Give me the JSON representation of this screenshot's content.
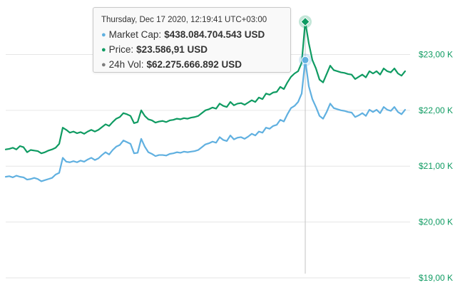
{
  "colors": {
    "price": "#0f9b62",
    "market_cap": "#60b0e0",
    "volume": "#7d7d7d",
    "grid": "#e6e6e6",
    "crosshair": "#c3c3c3"
  },
  "tooltip": {
    "header": "Thursday, Dec 17 2020, 12:19:41 UTC+03:00",
    "rows": [
      {
        "label": "Market Cap:",
        "value": "$438.084.704.543 USD",
        "color": "#60b0e0",
        "icon": "circle-bullet"
      },
      {
        "label": "Price:",
        "value": "$23.586,91 USD",
        "color": "#0f9b62",
        "icon": "circle-bullet"
      },
      {
        "label": "24h Vol:",
        "value": "$62.275.666.892 USD",
        "color": "#7d7d7d",
        "icon": "circle-bullet"
      }
    ]
  },
  "chart_data": {
    "type": "line",
    "title": "",
    "xlabel": "",
    "ylabel": "",
    "ylim": [
      19000,
      23950
    ],
    "y_tick_values": [
      19000,
      20000,
      21000,
      22000,
      23000
    ],
    "y_tick_labels": [
      "$19,00 K",
      "$20,00 K",
      "$21,00 K",
      "$22,00 K",
      "$23,00 K"
    ],
    "axis_side": "right",
    "grid": true,
    "legend": "none",
    "highlight_index": 84,
    "series": [
      {
        "key": "price",
        "values": [
          21300,
          21310,
          21330,
          21300,
          21360,
          21340,
          21250,
          21290,
          21280,
          21270,
          21230,
          21250,
          21280,
          21300,
          21330,
          21400,
          21690,
          21650,
          21600,
          21620,
          21590,
          21610,
          21580,
          21620,
          21650,
          21620,
          21650,
          21700,
          21750,
          21720,
          21790,
          21850,
          21880,
          21950,
          21930,
          21900,
          21770,
          21790,
          22000,
          21900,
          21840,
          21820,
          21780,
          21800,
          21810,
          21790,
          21820,
          21830,
          21850,
          21840,
          21860,
          21850,
          21870,
          21880,
          21900,
          21950,
          22000,
          22020,
          22050,
          22030,
          22120,
          22080,
          22060,
          22150,
          22090,
          22120,
          22130,
          22100,
          22140,
          22180,
          22150,
          22230,
          22200,
          22300,
          22280,
          22320,
          22330,
          22420,
          22380,
          22500,
          22600,
          22660,
          22700,
          22850,
          23586,
          23200,
          22900,
          22750,
          22550,
          22500,
          22650,
          22800,
          22720,
          22700,
          22680,
          22670,
          22650,
          22640,
          22560,
          22600,
          22640,
          22590,
          22700,
          22660,
          22700,
          22640,
          22750,
          22700,
          22680,
          22750,
          22660,
          22620,
          22700
        ]
      },
      {
        "key": "market_cap",
        "values": [
          20810,
          20820,
          20800,
          20830,
          20810,
          20800,
          20760,
          20770,
          20790,
          20770,
          20730,
          20750,
          20770,
          20790,
          20850,
          20880,
          21150,
          21080,
          21070,
          21090,
          21070,
          21100,
          21080,
          21120,
          21150,
          21110,
          21140,
          21200,
          21250,
          21210,
          21290,
          21350,
          21380,
          21460,
          21430,
          21400,
          21230,
          21240,
          21490,
          21350,
          21250,
          21220,
          21180,
          21200,
          21200,
          21190,
          21220,
          21230,
          21250,
          21240,
          21260,
          21250,
          21260,
          21270,
          21290,
          21340,
          21390,
          21410,
          21440,
          21420,
          21520,
          21470,
          21450,
          21550,
          21480,
          21510,
          21520,
          21490,
          21530,
          21580,
          21550,
          21620,
          21600,
          21690,
          21670,
          21720,
          21740,
          21830,
          21800,
          21930,
          22040,
          22080,
          22150,
          22300,
          22900,
          22430,
          22200,
          22060,
          21900,
          21850,
          21970,
          22120,
          22040,
          22020,
          22000,
          21990,
          21970,
          21960,
          21880,
          21910,
          21950,
          21900,
          22010,
          21970,
          22010,
          21950,
          22060,
          22010,
          21990,
          22060,
          21970,
          21930,
          22010
        ]
      }
    ]
  }
}
